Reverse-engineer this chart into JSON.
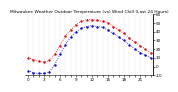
{
  "title": "Milwaukee Weather Outdoor Temperature (vs) Wind Chill (Last 24 Hours)",
  "background_color": "#ffffff",
  "grid_color": "#888888",
  "line_color_temp": "#dd0000",
  "line_color_windchill": "#0000cc",
  "hours": [
    0,
    1,
    2,
    3,
    4,
    5,
    6,
    7,
    8,
    9,
    10,
    11,
    12,
    13,
    14,
    15,
    16,
    17,
    18,
    19,
    20,
    21,
    22,
    23
  ],
  "temp": [
    10,
    8,
    6,
    5,
    7,
    14,
    24,
    35,
    42,
    48,
    52,
    54,
    54,
    53,
    52,
    50,
    46,
    42,
    38,
    33,
    28,
    24,
    20,
    16
  ],
  "windchill": [
    -5,
    -7,
    -8,
    -8,
    -6,
    2,
    14,
    25,
    34,
    40,
    44,
    46,
    47,
    46,
    45,
    42,
    38,
    34,
    30,
    25,
    20,
    16,
    13,
    10
  ],
  "ylim": [
    -10,
    60
  ],
  "yticks": [
    -10,
    0,
    10,
    20,
    30,
    40,
    50,
    60
  ],
  "title_fontsize": 3.2,
  "tick_fontsize": 3.0,
  "linewidth": 0.6,
  "markersize": 1.4
}
